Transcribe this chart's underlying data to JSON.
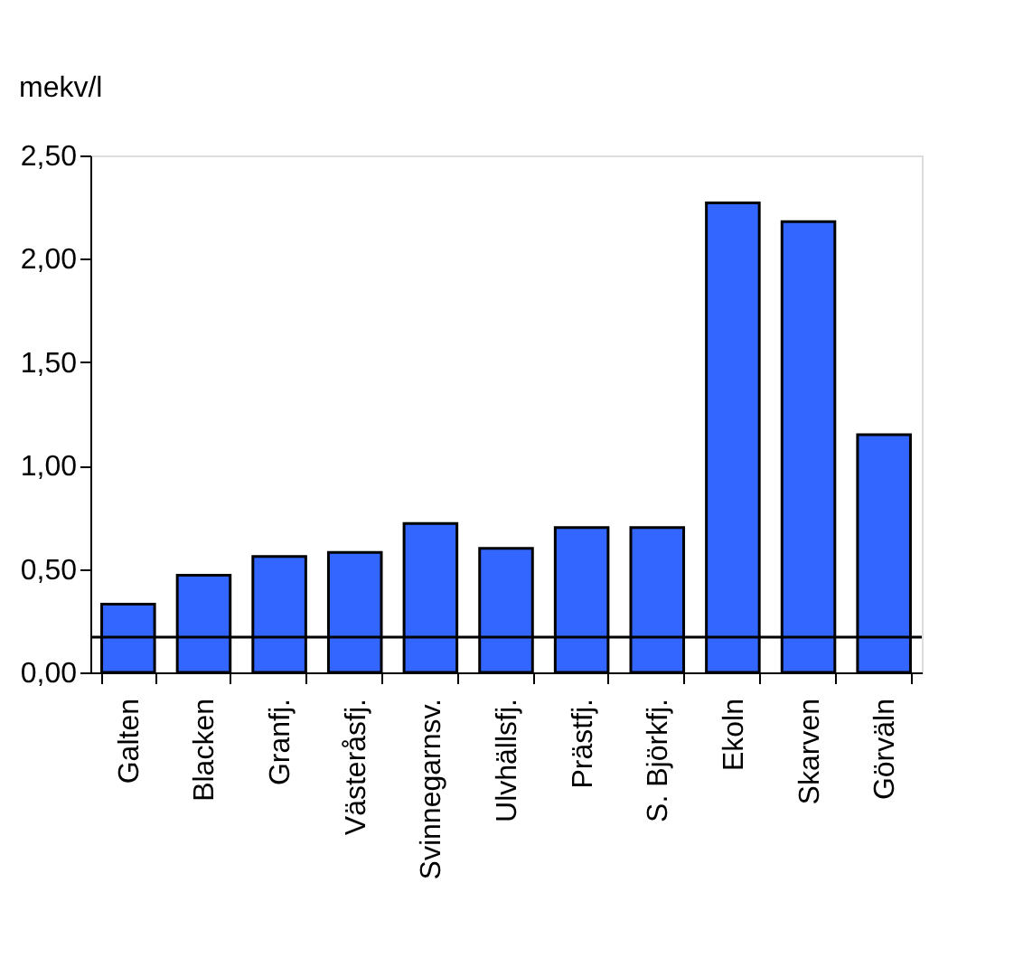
{
  "chart_data": {
    "type": "bar",
    "ylabel": "mekv/l",
    "categories": [
      "Galten",
      "Blacken",
      "Granfj.",
      "Västeråsfj.",
      "Svinnegarnsv.",
      "Ulvhällsfj.",
      "Prästfj.",
      "S. Björkfj.",
      "Ekoln",
      "Skarven",
      "Görväln"
    ],
    "values": [
      0.33,
      0.47,
      0.56,
      0.58,
      0.72,
      0.6,
      0.7,
      0.7,
      2.27,
      2.18,
      1.15
    ],
    "color": "#3366ff",
    "ylim": [
      0,
      2.5
    ],
    "yticks": [
      {
        "value": 0,
        "label": "0,00"
      },
      {
        "value": 0.5,
        "label": "0,50"
      },
      {
        "value": 1.0,
        "label": "1,00"
      },
      {
        "value": 1.5,
        "label": "1,50"
      },
      {
        "value": 2.0,
        "label": "2,00"
      },
      {
        "value": 2.5,
        "label": "2,50"
      }
    ],
    "ref_lines": [
      {
        "axis": "y",
        "value": 0.17,
        "color": "#000000"
      }
    ],
    "grid": false
  }
}
